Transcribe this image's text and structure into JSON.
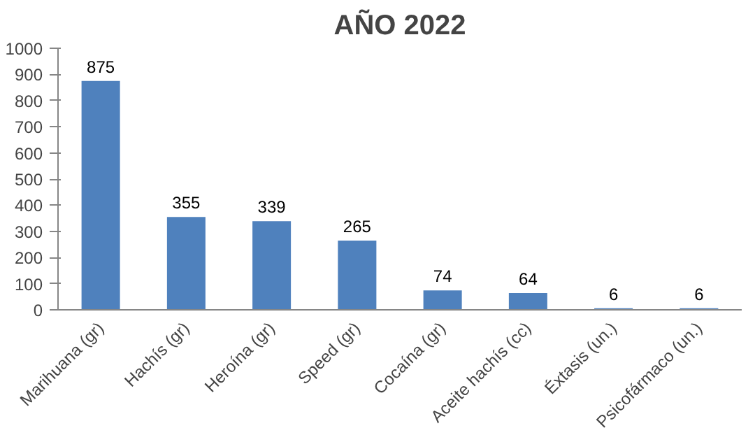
{
  "chart_data": {
    "type": "bar",
    "title": "AÑO 2022",
    "categories": [
      "Marihuana (gr)",
      "Hachís (gr)",
      "Heroína (gr)",
      "Speed (gr)",
      "Cocaína (gr)",
      "Aceite hachís (cc)",
      "Éxtasis (un.)",
      "Psicofármaco (un.)"
    ],
    "values": [
      875,
      355,
      339,
      265,
      74,
      64,
      6,
      6
    ],
    "color": "#4f81bd",
    "ylim": [
      0,
      1000
    ],
    "yticks": [
      0,
      100,
      200,
      300,
      400,
      500,
      600,
      700,
      800,
      900,
      1000
    ],
    "grid": false,
    "data_labels": true
  }
}
